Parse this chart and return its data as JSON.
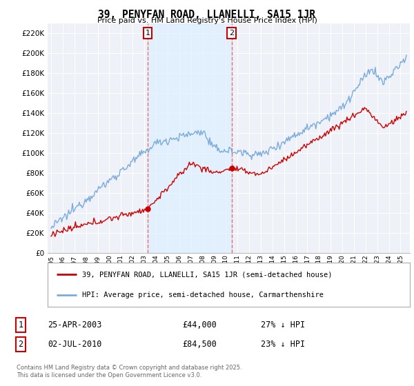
{
  "title": "39, PENYFAN ROAD, LLANELLI, SA15 1JR",
  "subtitle": "Price paid vs. HM Land Registry's House Price Index (HPI)",
  "ylim": [
    0,
    230000
  ],
  "yticks": [
    0,
    20000,
    40000,
    60000,
    80000,
    100000,
    120000,
    140000,
    160000,
    180000,
    200000,
    220000
  ],
  "ytick_labels": [
    "£0",
    "£20K",
    "£40K",
    "£60K",
    "£80K",
    "£100K",
    "£120K",
    "£140K",
    "£160K",
    "£180K",
    "£200K",
    "£220K"
  ],
  "background_color": "#ffffff",
  "plot_bg_color": "#eef2f8",
  "grid_color": "#ffffff",
  "hpi_color": "#7aabdc",
  "price_color": "#cc0000",
  "vline_color": "#e87070",
  "shade_color": "#ddeeff",
  "sale1_x": 2003.29,
  "sale1_price": 44000,
  "sale2_x": 2010.5,
  "sale2_price": 84500,
  "legend_line1": "39, PENYFAN ROAD, LLANELLI, SA15 1JR (semi-detached house)",
  "legend_line2": "HPI: Average price, semi-detached house, Carmarthenshire",
  "table_row1": [
    "1",
    "25-APR-2003",
    "£44,000",
    "27% ↓ HPI"
  ],
  "table_row2": [
    "2",
    "02-JUL-2010",
    "£84,500",
    "23% ↓ HPI"
  ],
  "footnote": "Contains HM Land Registry data © Crown copyright and database right 2025.\nThis data is licensed under the Open Government Licence v3.0.",
  "xstart_year": 1995,
  "xend_year": 2025
}
